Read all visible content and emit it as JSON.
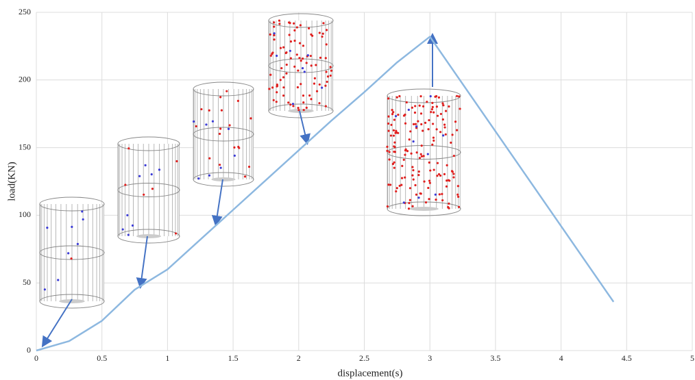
{
  "chart_data": {
    "type": "line",
    "x_label": "displacement(s)",
    "y_label": "load(KN)",
    "x": [
      0,
      0.25,
      0.5,
      0.75,
      1,
      1.25,
      1.5,
      1.75,
      2,
      2.25,
      2.5,
      2.75,
      3,
      4.4
    ],
    "values": [
      0,
      7,
      22,
      45,
      60,
      82,
      104,
      126,
      148,
      170,
      191,
      213,
      232,
      36
    ],
    "color": "#8db8e0",
    "xlim": [
      0,
      5
    ],
    "xticks": [
      0,
      0.5,
      1,
      1.5,
      2,
      2.5,
      3,
      3.5,
      4,
      4.5,
      5
    ],
    "ylim": [
      0,
      250
    ],
    "yticks": [
      0,
      50,
      100,
      150,
      200,
      250
    ],
    "grid": true
  }
}
